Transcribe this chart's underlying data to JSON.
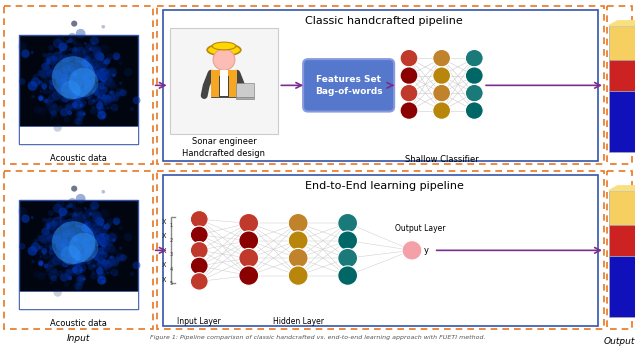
{
  "title": "Classic handcrafted pipeline",
  "title2": "End-to-End learning pipeline",
  "dashed_orange": "#E87722",
  "inner_box_blue": "#3355AA",
  "arrow_color": "#7B2D8B",
  "features_box_color": "#5577CC",
  "features_text": "Features Set\nBag-of-words",
  "label_acoustic1": "Acoustic data",
  "label_acoustic2": "Acoustic data",
  "label_sonar": "Sonar engineer\nHandcrafted design",
  "label_shallow": "Shallow Classifier",
  "label_input": "Input",
  "label_output": "Output",
  "label_input_layer": "Input Layer",
  "label_hidden_layer": "Hidden Layer",
  "label_output_layer": "Output Layer",
  "caption": "Figure 1: ...",
  "bg_color": "#FFFFFF",
  "nn_top_l1": [
    "#C0392B",
    "#8B0000",
    "#C0392B",
    "#8B0000"
  ],
  "nn_top_l2": [
    "#C0832B",
    "#B8860B",
    "#C0832B",
    "#B8860B"
  ],
  "nn_top_l3": [
    "#1A7A7A",
    "#006666",
    "#1A7A7A",
    "#006666"
  ],
  "nn_bot_in": [
    "#C0392B",
    "#8B0000",
    "#C0392B",
    "#8B0000",
    "#C0392B"
  ],
  "nn_bot_h1": [
    "#C0392B",
    "#8B0000",
    "#C0392B",
    "#8B0000"
  ],
  "nn_bot_h2": [
    "#C0832B",
    "#B8860B",
    "#C0832B",
    "#B8860B"
  ],
  "nn_bot_h3": [
    "#1A7A7A",
    "#006666",
    "#1A7A7A",
    "#006666"
  ],
  "bar_yellow": "#F5D060",
  "bar_red": "#CC2222",
  "bar_blue": "#1111BB",
  "bar_yellow_side": "#D4AA40",
  "bar_red_side": "#991111",
  "bar_blue_side": "#0000AA"
}
